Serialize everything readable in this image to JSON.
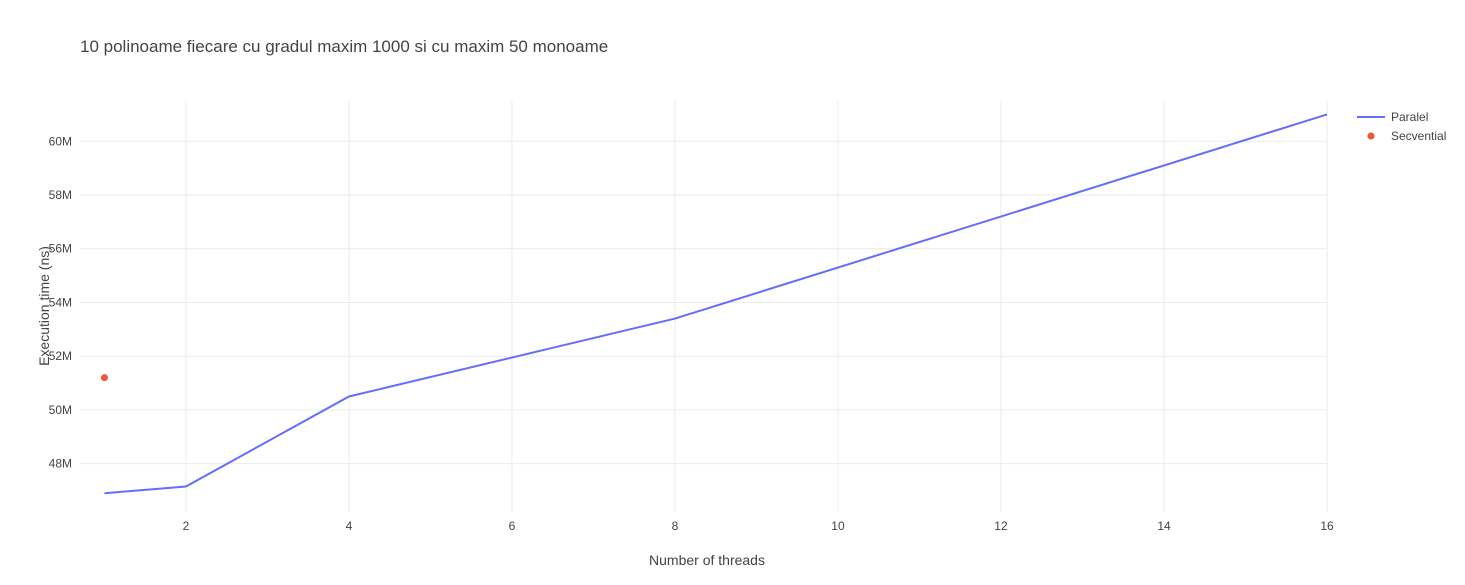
{
  "chart_data": {
    "type": "line",
    "title": "10 polinoame fiecare cu gradul maxim 1000 si cu maxim 50 monoame",
    "xlabel": "Number of threads",
    "ylabel": "Execution time (ns)",
    "xlim": [
      0.7,
      16
    ],
    "ylim": [
      46200000,
      61500000
    ],
    "x_ticks": [
      2,
      4,
      6,
      8,
      10,
      12,
      14,
      16
    ],
    "y_ticks": [
      48000000,
      50000000,
      52000000,
      54000000,
      56000000,
      58000000,
      60000000
    ],
    "y_tick_labels": [
      "48M",
      "50M",
      "52M",
      "54M",
      "56M",
      "58M",
      "60M"
    ],
    "grid": true,
    "legend_position": "top-right",
    "series": [
      {
        "name": "Paralel",
        "mode": "line",
        "color": "#636efa",
        "x": [
          1,
          2,
          4,
          8,
          16
        ],
        "y": [
          46900000,
          47150000,
          50500000,
          53400000,
          61000000
        ]
      },
      {
        "name": "Secvential",
        "mode": "markers",
        "color": "#ef553b",
        "x": [
          1
        ],
        "y": [
          51200000
        ]
      }
    ]
  }
}
